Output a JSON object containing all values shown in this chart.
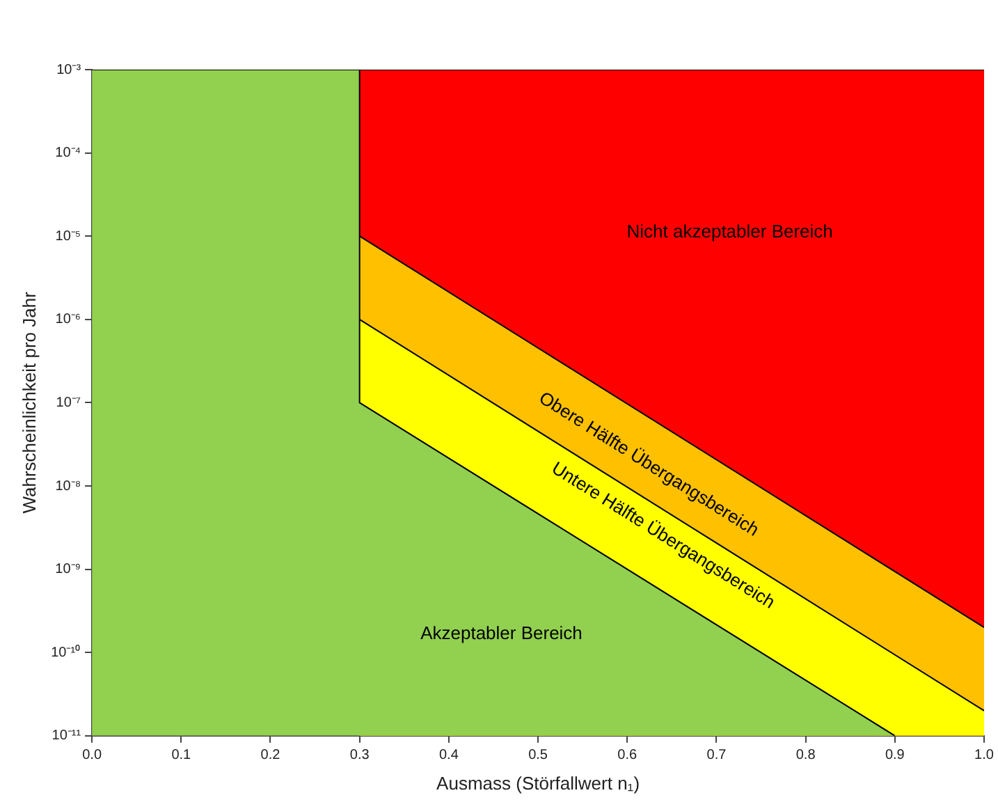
{
  "chart_data": {
    "type": "area",
    "xlabel": "Ausmass (Störfallwert n₁)",
    "ylabel": "Wahrscheinlichkeit pro Jahr",
    "log": "y",
    "grid": false,
    "legend": false,
    "marker": "none",
    "xlim": [
      0,
      1
    ],
    "xticks": [
      {
        "value": 0,
        "label": "0.0"
      },
      0.1,
      0.2,
      0.3,
      0.4,
      0.5,
      0.6,
      0.7,
      0.8,
      0.9,
      {
        "value": 1,
        "label": "1.0"
      }
    ],
    "ylim": [
      1e-11,
      0.001
    ],
    "yticks": [
      {
        "value": 1e-11,
        "label": "10⁻¹¹"
      },
      {
        "value": 1e-10,
        "label": "10⁻¹⁰"
      },
      {
        "value": 1e-09,
        "label": "10⁻⁹"
      },
      {
        "value": 1e-08,
        "label": "10⁻⁸"
      },
      {
        "value": 1e-07,
        "label": "10⁻⁷"
      },
      {
        "value": 1e-06,
        "label": "10⁻⁶"
      },
      {
        "value": 1e-05,
        "label": "10⁻⁵"
      },
      {
        "value": 0.0001,
        "label": "10⁻⁴"
      },
      {
        "value": 0.001,
        "label": "10⁻³"
      }
    ],
    "series": [
      {
        "color": "#ff0000",
        "x": [
          0.3,
          1.0
        ],
        "values": [
          0.001,
          0.001
        ]
      },
      {
        "color": "#ffc000",
        "x": [
          0.3,
          1.0
        ],
        "values": [
          1e-05,
          2e-10
        ]
      },
      {
        "color": "#ffff00",
        "x": [
          0.3,
          1.0
        ],
        "values": [
          1e-06,
          2e-11
        ]
      },
      {
        "color": "#92d050",
        "x": [
          0,
          0.3,
          0.3,
          0.9
        ],
        "values": [
          0.001,
          0.001,
          1e-07,
          1e-11
        ]
      }
    ],
    "annotations": [
      "Nicht akzeptabler Bereich",
      "Obere Hälfte Übergangsbereich",
      "Untere Hälfte Übergangsbereich",
      "Akzeptabler Bereich"
    ]
  }
}
